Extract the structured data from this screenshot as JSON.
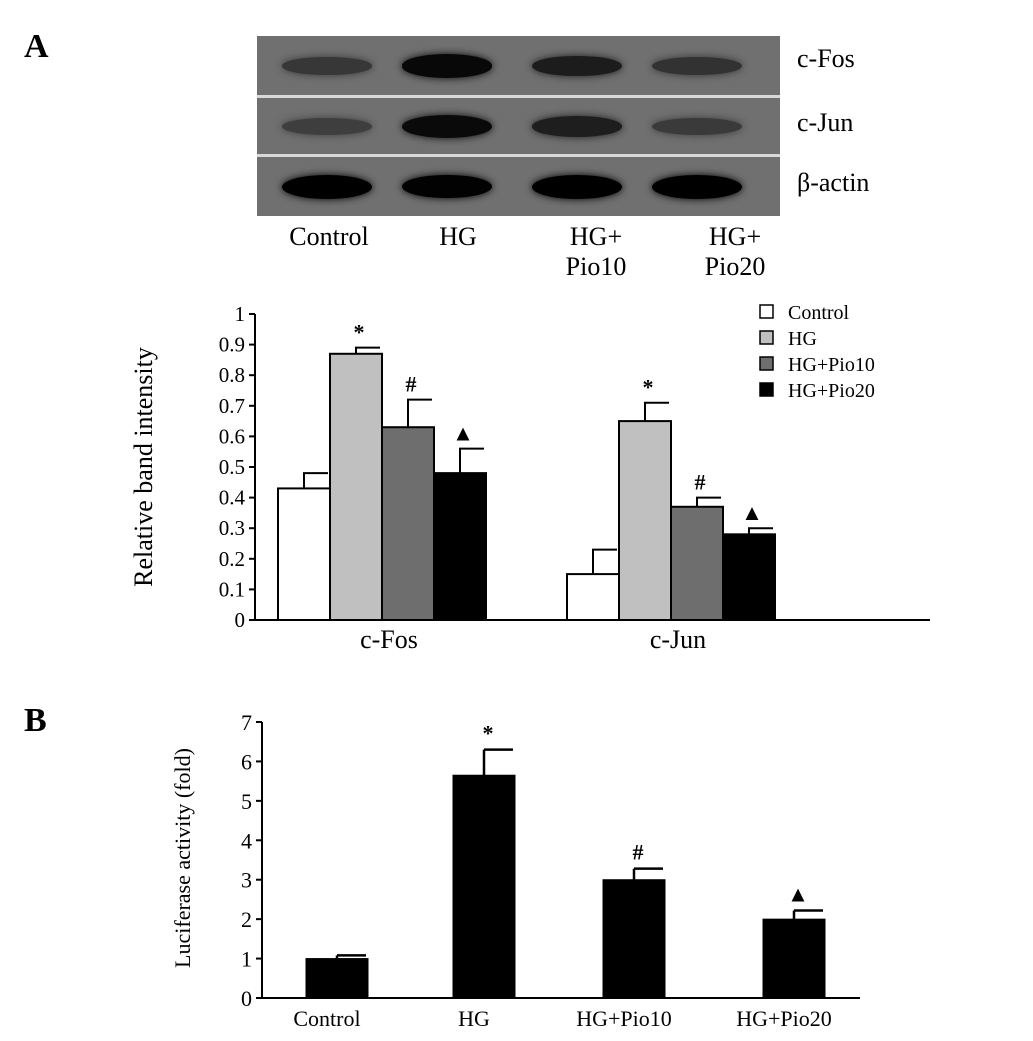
{
  "panel_a": {
    "label": "A",
    "blot": {
      "rows": [
        {
          "label": "c-Fos",
          "intensities": [
            0.45,
            0.92,
            0.72,
            0.5
          ]
        },
        {
          "label": "c-Jun",
          "intensities": [
            0.38,
            0.9,
            0.7,
            0.42
          ]
        },
        {
          "label": "β-actin",
          "intensities": [
            1.0,
            0.98,
            1.0,
            1.0
          ]
        }
      ],
      "lanes": [
        {
          "line1": "Control",
          "line2": ""
        },
        {
          "line1": "HG",
          "line2": ""
        },
        {
          "line1": "HG+",
          "line2": "Pio10"
        },
        {
          "line1": "HG+",
          "line2": "Pio20"
        }
      ]
    }
  },
  "panel_b": {
    "label": "B"
  },
  "chart_data": [
    {
      "type": "bar",
      "categories": [
        "c-Fos",
        "c-Jun"
      ],
      "ylabel": "Relative band intensity",
      "xlabel": "",
      "ylim": [
        0,
        1
      ],
      "yticks": [
        "0",
        "0.1",
        "0.2",
        "0.3",
        "0.4",
        "0.5",
        "0.6",
        "0.7",
        "0.8",
        "0.9",
        "1"
      ],
      "legend_position": "top-right",
      "series": [
        {
          "name": "Control",
          "color": "#ffffff",
          "values": [
            0.43,
            0.15
          ],
          "errors": [
            0.05,
            0.08
          ],
          "markers": [
            "",
            ""
          ]
        },
        {
          "name": "HG",
          "color": "#c0c0c0",
          "values": [
            0.87,
            0.65
          ],
          "errors": [
            0.02,
            0.06
          ],
          "markers": [
            "*",
            "*"
          ]
        },
        {
          "name": "HG+Pio10",
          "color": "#6e6e6e",
          "values": [
            0.63,
            0.37
          ],
          "errors": [
            0.09,
            0.03
          ],
          "markers": [
            "#",
            "#"
          ]
        },
        {
          "name": "HG+Pio20",
          "color": "#000000",
          "values": [
            0.48,
            0.28
          ],
          "errors": [
            0.08,
            0.02
          ],
          "markers": [
            "▲",
            "▲"
          ]
        }
      ]
    },
    {
      "type": "bar",
      "categories": [
        "Control",
        "HG",
        "HG+Pio10",
        "HG+Pio20"
      ],
      "ylabel": "Luciferase activity (fold)",
      "xlabel": "",
      "ylim": [
        0,
        7
      ],
      "yticks": [
        "0",
        "1",
        "2",
        "3",
        "4",
        "5",
        "6",
        "7"
      ],
      "series": [
        {
          "color": "#000000",
          "values": [
            1.0,
            5.65,
            3.0,
            2.0
          ],
          "errors": [
            0.08,
            0.65,
            0.28,
            0.22
          ],
          "markers": [
            "",
            "*",
            "#",
            "▲"
          ]
        }
      ]
    }
  ]
}
